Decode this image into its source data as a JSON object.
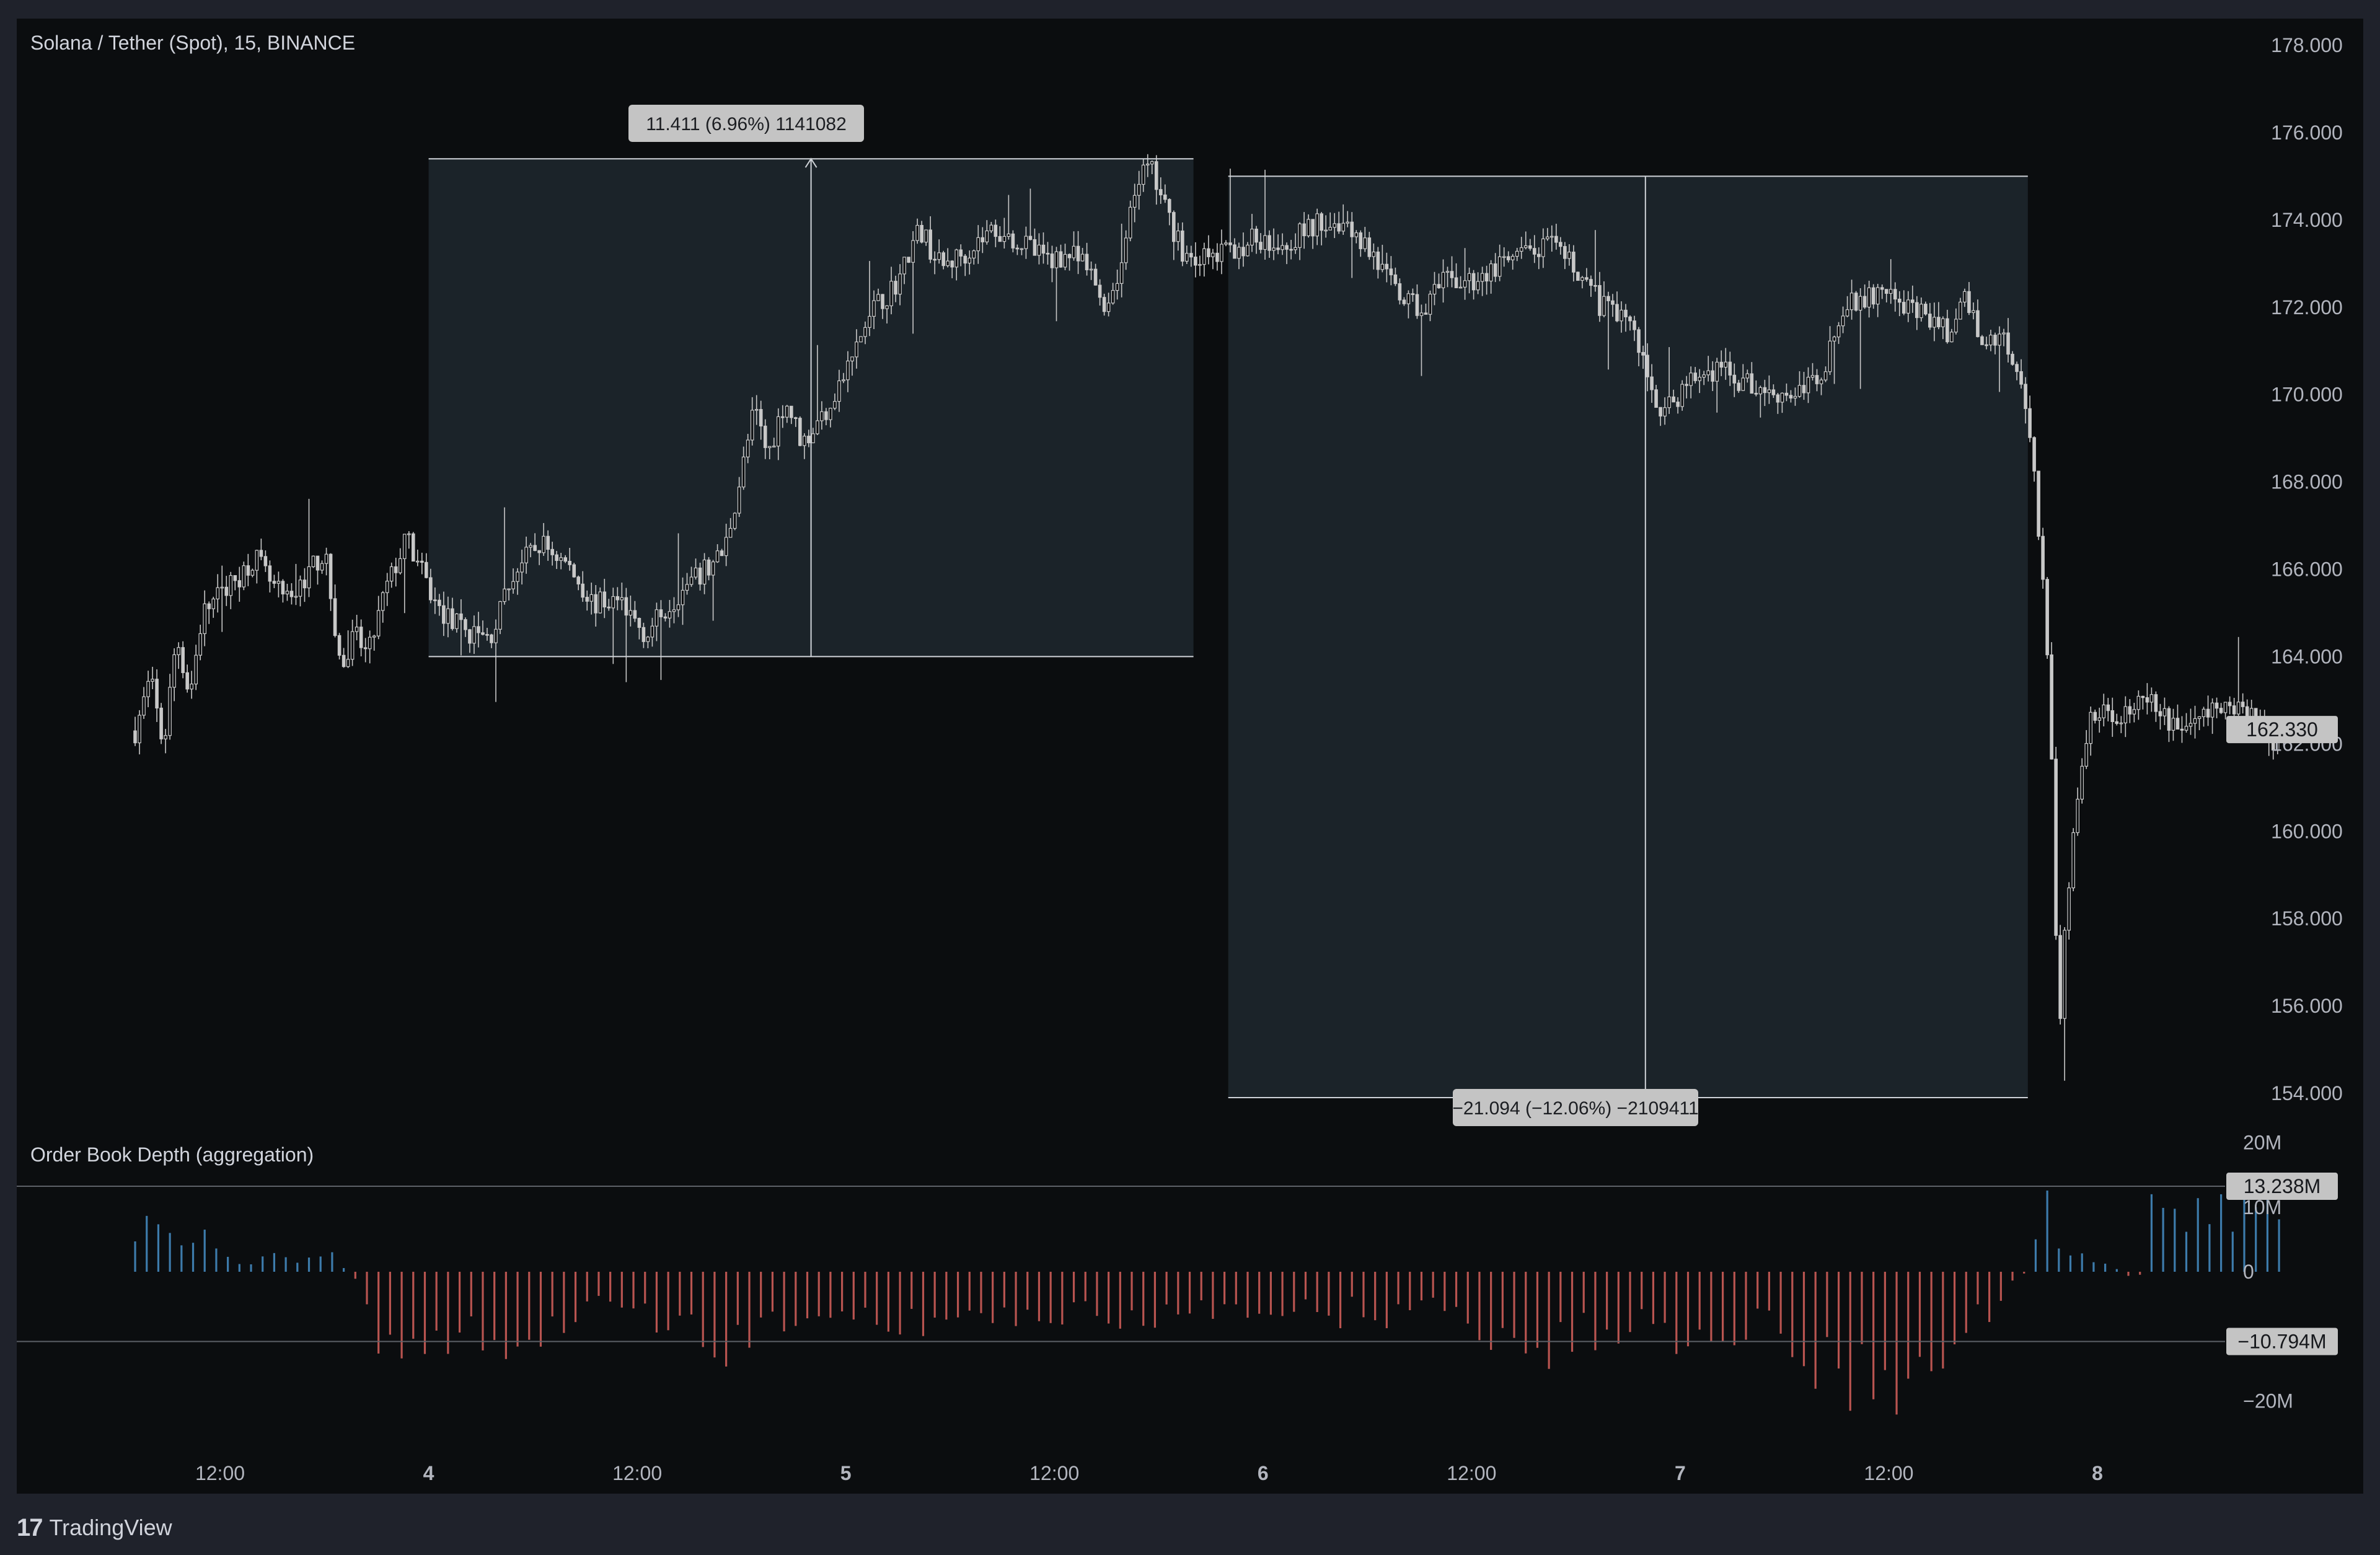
{
  "symbol_title": "Solana / Tether (Spot), 15, BINANCE",
  "indicator_title": "Order Book Depth (aggregation)",
  "footer": {
    "logo_glyph": "17",
    "brand": "TradingView"
  },
  "colors": {
    "up_bar": "#3d7bab",
    "down_bar": "#b85450",
    "candle": "#c8c8c8",
    "measure_fill": "#1b2329",
    "label_bg": "#c4c4c4"
  },
  "price_axis_labels": [
    "178.000",
    "176.000",
    "174.000",
    "172.000",
    "170.000",
    "168.000",
    "166.000",
    "164.000",
    "162.000",
    "160.000",
    "158.000",
    "156.000",
    "154.000"
  ],
  "depth_axis_labels": [
    "20M",
    "10M",
    "0",
    "−20M"
  ],
  "time_axis_labels": [
    {
      "t": "2024-01-03T12:00",
      "text": "12:00",
      "bold": false
    },
    {
      "t": "2024-01-04T00:00",
      "text": "4",
      "bold": true
    },
    {
      "t": "2024-01-04T12:00",
      "text": "12:00",
      "bold": false
    },
    {
      "t": "2024-01-05T00:00",
      "text": "5",
      "bold": true
    },
    {
      "t": "2024-01-05T12:00",
      "text": "12:00",
      "bold": false
    },
    {
      "t": "2024-01-06T00:00",
      "text": "6",
      "bold": true
    },
    {
      "t": "2024-01-06T12:00",
      "text": "12:00",
      "bold": false
    },
    {
      "t": "2024-01-07T00:00",
      "text": "7",
      "bold": true
    },
    {
      "t": "2024-01-07T12:00",
      "text": "12:00",
      "bold": false
    },
    {
      "t": "2024-01-08T00:00",
      "text": "8",
      "bold": true
    }
  ],
  "last_price_badge": "162.330",
  "depth_upper_badge": "13.238M",
  "depth_lower_badge": "−10.794M",
  "measure_1_label": "11.411 (6.96%) 1141082",
  "measure_2_label": "−21.094 (−12.06%) −2109411",
  "chart_data": [
    {
      "type": "candlestick",
      "title": "Solana / Tether (Spot), 15, BINANCE",
      "interval_minutes": 15,
      "x_range": [
        "2024-01-03T07:07",
        "2024-01-08T12:00"
      ],
      "ylim": [
        153.28,
        179.3
      ],
      "last_price": 162.33,
      "close_path": [
        [
          "2024-01-03T07:07",
          162.3
        ],
        [
          "2024-01-03T08:00",
          163.5
        ],
        [
          "2024-01-03T08:45",
          161.9
        ],
        [
          "2024-01-03T09:30",
          164.5
        ],
        [
          "2024-01-03T10:15",
          163.1
        ],
        [
          "2024-01-03T11:00",
          165.0
        ],
        [
          "2024-01-03T12:00",
          165.4
        ],
        [
          "2024-01-03T13:00",
          165.8
        ],
        [
          "2024-01-03T14:00",
          166.3
        ],
        [
          "2024-01-03T15:00",
          165.6
        ],
        [
          "2024-01-03T16:00",
          165.2
        ],
        [
          "2024-01-03T17:00",
          165.9
        ],
        [
          "2024-01-03T18:00",
          166.4
        ],
        [
          "2024-01-03T19:00",
          163.6
        ],
        [
          "2024-01-03T19:45",
          164.5
        ],
        [
          "2024-01-03T20:30",
          164.0
        ],
        [
          "2024-01-03T21:30",
          165.5
        ],
        [
          "2024-01-03T22:45",
          166.7
        ],
        [
          "2024-01-04T00:30",
          165.1
        ],
        [
          "2024-01-04T02:00",
          164.6
        ],
        [
          "2024-01-04T03:30",
          164.4
        ],
        [
          "2024-01-04T05:00",
          166.0
        ],
        [
          "2024-01-04T06:30",
          166.6
        ],
        [
          "2024-01-04T08:00",
          166.1
        ],
        [
          "2024-01-04T09:30",
          165.2
        ],
        [
          "2024-01-04T11:00",
          165.3
        ],
        [
          "2024-01-04T12:30",
          164.5
        ],
        [
          "2024-01-04T14:00",
          165.3
        ],
        [
          "2024-01-04T15:30",
          165.8
        ],
        [
          "2024-01-04T17:00",
          166.4
        ],
        [
          "2024-01-04T18:00",
          168.2
        ],
        [
          "2024-01-04T18:45",
          169.7
        ],
        [
          "2024-01-04T19:30",
          168.6
        ],
        [
          "2024-01-04T20:30",
          169.9
        ],
        [
          "2024-01-04T21:30",
          168.9
        ],
        [
          "2024-01-04T22:30",
          169.4
        ],
        [
          "2024-01-05T00:00",
          170.5
        ],
        [
          "2024-01-05T01:30",
          171.9
        ],
        [
          "2024-01-05T03:00",
          172.6
        ],
        [
          "2024-01-05T04:15",
          173.8
        ],
        [
          "2024-01-05T05:30",
          172.9
        ],
        [
          "2024-01-05T07:00",
          173.3
        ],
        [
          "2024-01-05T08:30",
          173.8
        ],
        [
          "2024-01-05T10:00",
          173.5
        ],
        [
          "2024-01-05T11:30",
          173.1
        ],
        [
          "2024-01-05T13:00",
          173.2
        ],
        [
          "2024-01-05T14:00",
          172.8
        ],
        [
          "2024-01-05T15:00",
          172.0
        ],
        [
          "2024-01-05T16:00",
          173.2
        ],
        [
          "2024-01-05T16:45",
          174.9
        ],
        [
          "2024-01-05T17:30",
          175.2
        ],
        [
          "2024-01-05T18:30",
          174.1
        ],
        [
          "2024-01-05T19:30",
          173.2
        ],
        [
          "2024-01-05T21:00",
          173.1
        ],
        [
          "2024-01-05T22:30",
          173.4
        ],
        [
          "2024-01-06T00:00",
          173.6
        ],
        [
          "2024-01-06T01:30",
          173.5
        ],
        [
          "2024-01-06T03:00",
          173.9
        ],
        [
          "2024-01-06T04:30",
          174.0
        ],
        [
          "2024-01-06T06:00",
          173.4
        ],
        [
          "2024-01-06T07:30",
          172.4
        ],
        [
          "2024-01-06T09:00",
          171.9
        ],
        [
          "2024-01-06T10:30",
          172.6
        ],
        [
          "2024-01-06T12:00",
          172.6
        ],
        [
          "2024-01-06T13:30",
          172.9
        ],
        [
          "2024-01-06T15:00",
          173.2
        ],
        [
          "2024-01-06T16:30",
          173.4
        ],
        [
          "2024-01-06T18:00",
          172.9
        ],
        [
          "2024-01-06T19:30",
          172.0
        ],
        [
          "2024-01-06T21:00",
          171.8
        ],
        [
          "2024-01-06T22:00",
          170.6
        ],
        [
          "2024-01-06T23:00",
          169.5
        ],
        [
          "2024-01-07T00:30",
          170.3
        ],
        [
          "2024-01-07T02:00",
          170.6
        ],
        [
          "2024-01-07T03:30",
          170.3
        ],
        [
          "2024-01-07T05:00",
          170.1
        ],
        [
          "2024-01-07T06:30",
          170.0
        ],
        [
          "2024-01-07T08:00",
          170.4
        ],
        [
          "2024-01-07T09:30",
          172.0
        ],
        [
          "2024-01-07T11:00",
          172.3
        ],
        [
          "2024-01-07T12:30",
          172.1
        ],
        [
          "2024-01-07T14:00",
          171.8
        ],
        [
          "2024-01-07T15:30",
          171.4
        ],
        [
          "2024-01-07T16:30",
          172.2
        ],
        [
          "2024-01-07T17:30",
          171.1
        ],
        [
          "2024-01-07T18:30",
          171.4
        ],
        [
          "2024-01-07T19:15",
          170.8
        ],
        [
          "2024-01-07T20:00",
          169.6
        ],
        [
          "2024-01-07T20:30",
          167.6
        ],
        [
          "2024-01-07T21:00",
          165.0
        ],
        [
          "2024-01-07T21:30",
          160.5
        ],
        [
          "2024-01-07T21:45",
          154.6
        ],
        [
          "2024-01-07T22:15",
          158.5
        ],
        [
          "2024-01-07T22:45",
          160.3
        ],
        [
          "2024-01-07T23:30",
          162.6
        ],
        [
          "2024-01-08T01:00",
          162.7
        ],
        [
          "2024-01-08T03:00",
          162.9
        ],
        [
          "2024-01-08T04:30",
          162.4
        ],
        [
          "2024-01-08T06:00",
          162.6
        ],
        [
          "2024-01-08T07:30",
          162.9
        ],
        [
          "2024-01-08T09:00",
          162.7
        ],
        [
          "2024-01-08T10:00",
          162.0
        ],
        [
          "2024-01-08T10:30",
          162.3
        ]
      ]
    },
    {
      "type": "bar",
      "title": "Order Book Depth (aggregation)",
      "units": "M",
      "ylim": [
        -25,
        22
      ],
      "reference_levels": [
        13.238,
        -10.794
      ],
      "depth_path": [
        [
          "2024-01-03T07:07",
          5.0
        ],
        [
          "2024-01-03T08:00",
          7.0
        ],
        [
          "2024-01-03T09:00",
          10.0
        ],
        [
          "2024-01-03T10:00",
          3.0
        ],
        [
          "2024-01-03T11:00",
          10.0
        ],
        [
          "2024-01-03T12:00",
          3.0
        ],
        [
          "2024-01-03T13:00",
          0.8
        ],
        [
          "2024-01-03T14:00",
          2.0
        ],
        [
          "2024-01-03T15:00",
          3.0
        ],
        [
          "2024-01-03T16:00",
          1.5
        ],
        [
          "2024-01-03T17:00",
          2.5
        ],
        [
          "2024-01-03T18:00",
          4.0
        ],
        [
          "2024-01-03T19:00",
          1.0
        ],
        [
          "2024-01-03T20:00",
          -2.0
        ],
        [
          "2024-01-03T21:00",
          -10.0
        ],
        [
          "2024-01-03T22:00",
          -17.0
        ],
        [
          "2024-01-03T23:00",
          -16.0
        ],
        [
          "2024-01-04T00:00",
          -14.0
        ],
        [
          "2024-01-04T02:00",
          -11.0
        ],
        [
          "2024-01-04T04:00",
          -10.0
        ],
        [
          "2024-01-04T06:00",
          -13.0
        ],
        [
          "2024-01-04T07:00",
          -12.0
        ],
        [
          "2024-01-04T08:00",
          -6.0
        ],
        [
          "2024-01-04T10:00",
          -5.0
        ],
        [
          "2024-01-04T12:00",
          -7.0
        ],
        [
          "2024-01-04T14:00",
          -9.0
        ],
        [
          "2024-01-04T15:30",
          -11.0
        ],
        [
          "2024-01-04T17:00",
          -13.0
        ],
        [
          "2024-01-04T18:30",
          -11.0
        ],
        [
          "2024-01-04T20:00",
          -9.0
        ],
        [
          "2024-01-04T22:00",
          -7.0
        ],
        [
          "2024-01-05T00:00",
          -5.0
        ],
        [
          "2024-01-05T02:00",
          -8.0
        ],
        [
          "2024-01-05T04:00",
          -9.0
        ],
        [
          "2024-01-05T06:00",
          -6.0
        ],
        [
          "2024-01-05T08:00",
          -7.0
        ],
        [
          "2024-01-05T10:00",
          -8.0
        ],
        [
          "2024-01-05T12:00",
          -7.0
        ],
        [
          "2024-01-05T14:00",
          -6.0
        ],
        [
          "2024-01-05T16:00",
          -10.0
        ],
        [
          "2024-01-05T18:00",
          -7.0
        ],
        [
          "2024-01-05T20:00",
          -5.0
        ],
        [
          "2024-01-05T22:00",
          -6.0
        ],
        [
          "2024-01-06T00:00",
          -5.0
        ],
        [
          "2024-01-06T02:00",
          -7.0
        ],
        [
          "2024-01-06T04:00",
          -7.0
        ],
        [
          "2024-01-06T06:00",
          -6.0
        ],
        [
          "2024-01-06T08:00",
          -7.0
        ],
        [
          "2024-01-06T10:00",
          -5.0
        ],
        [
          "2024-01-06T12:00",
          -8.0
        ],
        [
          "2024-01-06T14:00",
          -11.0
        ],
        [
          "2024-01-06T16:00",
          -12.0
        ],
        [
          "2024-01-06T18:00",
          -11.0
        ],
        [
          "2024-01-06T20:00",
          -9.0
        ],
        [
          "2024-01-06T22:00",
          -8.0
        ],
        [
          "2024-01-07T00:00",
          -10.0
        ],
        [
          "2024-01-07T02:00",
          -8.0
        ],
        [
          "2024-01-07T04:00",
          -9.0
        ],
        [
          "2024-01-07T06:00",
          -10.0
        ],
        [
          "2024-01-07T08:00",
          -14.0
        ],
        [
          "2024-01-07T09:30",
          -18.0
        ],
        [
          "2024-01-07T11:00",
          -16.0
        ],
        [
          "2024-01-07T12:30",
          -17.0
        ],
        [
          "2024-01-07T13:30",
          -21.0
        ],
        [
          "2024-01-07T14:30",
          -16.0
        ],
        [
          "2024-01-07T15:30",
          -12.0
        ],
        [
          "2024-01-07T16:30",
          -10.0
        ],
        [
          "2024-01-07T17:30",
          -7.0
        ],
        [
          "2024-01-07T18:30",
          -4.0
        ],
        [
          "2024-01-07T19:30",
          -1.0
        ],
        [
          "2024-01-07T20:00",
          0.0
        ],
        [
          "2024-01-07T20:30",
          8.0
        ],
        [
          "2024-01-07T21:00",
          13.0
        ],
        [
          "2024-01-07T21:30",
          6.0
        ],
        [
          "2024-01-07T22:30",
          4.0
        ],
        [
          "2024-01-07T23:30",
          2.0
        ],
        [
          "2024-01-08T00:30",
          1.0
        ],
        [
          "2024-01-08T01:30",
          0.0
        ],
        [
          "2024-01-08T02:00",
          -1.0
        ],
        [
          "2024-01-08T02:30",
          -0.5
        ],
        [
          "2024-01-08T03:00",
          10.0
        ],
        [
          "2024-01-08T05:00",
          9.0
        ],
        [
          "2024-01-08T07:00",
          9.0
        ],
        [
          "2024-01-08T09:00",
          10.0
        ],
        [
          "2024-01-08T10:30",
          12.0
        ]
      ]
    }
  ],
  "measurements": [
    {
      "from_time": "2024-01-04T00:00",
      "to_time": "2024-01-05T20:00",
      "from_price": 164.0,
      "to_price": 175.4,
      "cursor_time": "2024-01-04T22:00"
    },
    {
      "from_time": "2024-01-05T22:00",
      "to_time": "2024-01-07T20:00",
      "from_price": 175.0,
      "to_price": 153.9,
      "cursor_time": "2024-01-06T22:00"
    }
  ]
}
